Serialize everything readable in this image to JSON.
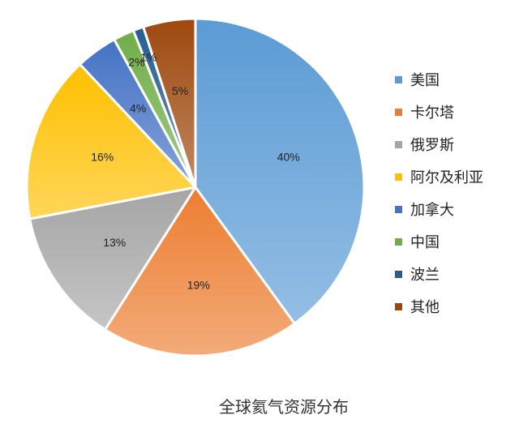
{
  "chart_data": {
    "type": "pie",
    "title": "全球氦气资源分布",
    "categories": [
      "美国",
      "卡尔塔",
      "俄罗斯",
      "阿尔及利亚",
      "加拿大",
      "中国",
      "波兰",
      "其他"
    ],
    "values": [
      40,
      19,
      13,
      16,
      4,
      2,
      1,
      5
    ],
    "data_labels": [
      "40%",
      "19%",
      "13%",
      "16%",
      "4%",
      "2%",
      "1%",
      "5%"
    ],
    "colors": [
      "#5b9bd5",
      "#ed7d31",
      "#a5a5a5",
      "#ffc000",
      "#4472c4",
      "#70ad47",
      "#255e91",
      "#9e480e"
    ],
    "legend_position": "right"
  }
}
